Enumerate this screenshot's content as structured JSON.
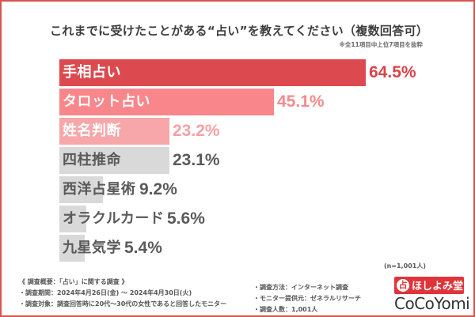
{
  "chart_data": {
    "type": "bar",
    "orientation": "horizontal",
    "title": "これまでに受けたことがある“占い”を教えてください（複数回答可）",
    "subtitle": "※全11項目中上位7項目を抜粋",
    "categories": [
      "手相占い",
      "タロット占い",
      "姓名判断",
      "四柱推命",
      "西洋占星術",
      "オラクルカード",
      "九星気学"
    ],
    "values": [
      64.5,
      45.1,
      23.2,
      23.1,
      9.2,
      5.6,
      5.4
    ],
    "value_labels": [
      "64.5%",
      "45.1%",
      "23.2%",
      "23.1%",
      "9.2%",
      "5.6%",
      "5.4%"
    ],
    "unit": "%",
    "xlim": [
      0,
      64.5
    ],
    "bar_colors": [
      "#dc4a4f",
      "#f8868b",
      "#f7a6a9",
      "#d9d9d9",
      "#d9d9d9",
      "#d9d9d9",
      "#d9d9d9"
    ],
    "label_colors": [
      "#ffffff",
      "#ffffff",
      "#ffffff",
      "#5a5a5a",
      "#5a5a5a",
      "#5a5a5a",
      "#5a5a5a"
    ],
    "value_colors": [
      "#d9434a",
      "#f58a8e",
      "#f4a1a5",
      "#5a5a5a",
      "#5a5a5a",
      "#5a5a5a",
      "#5a5a5a"
    ],
    "sample_size": "(n=1,001人)"
  },
  "footer": {
    "left": [
      "《 調査概要：「占い」に関する調査 》",
      "・調査期間：2024年4月26日(金) ～ 2024年4月30日(火)",
      "・調査対象：調査回答時に20代～30代の女性であると回答したモニター"
    ],
    "right": [
      "・調査方法：インターネット調査",
      "・モニター提供元：ゼネラルリサーチ",
      "・調査人数：1,001人"
    ]
  },
  "logo": {
    "mark": "占",
    "name": "ほしよみ堂",
    "brand": "CoCoYomi"
  },
  "colors": {
    "frame": "#d9534f",
    "title": "#3d3d3d"
  }
}
